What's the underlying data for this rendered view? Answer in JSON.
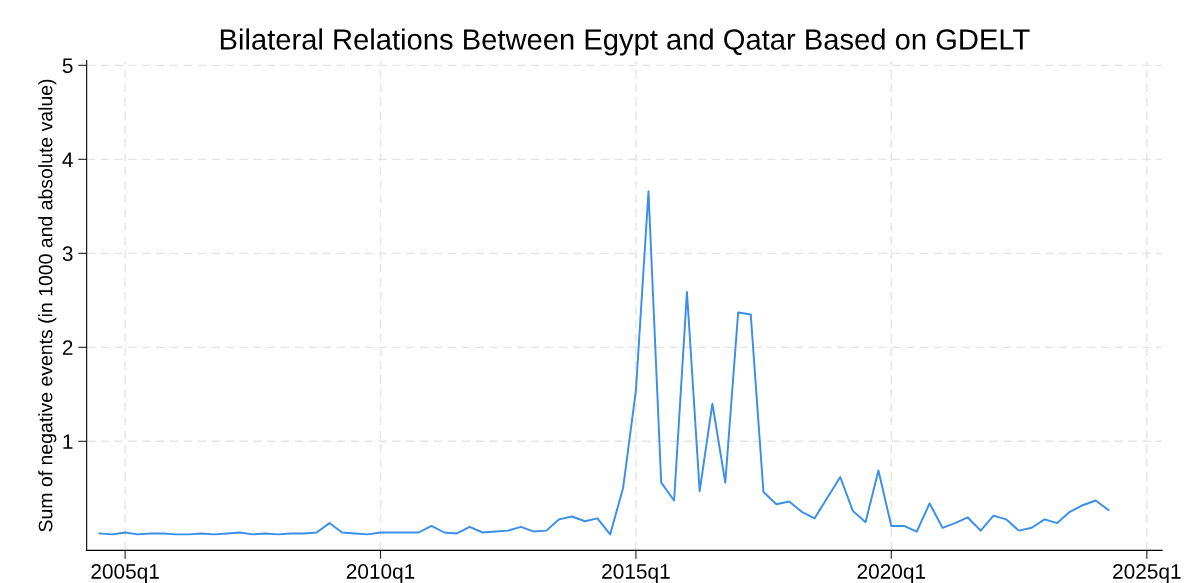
{
  "chart_data": {
    "type": "line",
    "title": "Bilateral Relations Between Egypt and Qatar Based on GDELT",
    "ylabel": "Sum of negative events (in 1000 and absolute value)",
    "x": [
      "2004-07",
      "2004-10",
      "2005-01",
      "2005-04",
      "2005-07",
      "2005-10",
      "2006-01",
      "2006-04",
      "2006-07",
      "2006-10",
      "2007-01",
      "2007-04",
      "2007-07",
      "2007-10",
      "2008-01",
      "2008-04",
      "2008-07",
      "2008-10",
      "2009-01",
      "2009-04",
      "2009-07",
      "2009-10",
      "2010-01",
      "2010-04",
      "2010-07",
      "2010-10",
      "2011-01",
      "2011-04",
      "2011-07",
      "2011-10",
      "2012-01",
      "2012-04",
      "2012-07",
      "2012-10",
      "2013-01",
      "2013-04",
      "2013-07",
      "2013-10",
      "2014-01",
      "2014-04",
      "2014-07",
      "2014-10",
      "2015-01",
      "2015-04",
      "2015-07",
      "2015-10",
      "2016-01",
      "2016-04",
      "2016-07",
      "2016-10",
      "2017-01",
      "2017-04",
      "2017-07",
      "2017-10",
      "2018-01",
      "2018-04",
      "2018-07",
      "2018-10",
      "2019-01",
      "2019-04",
      "2019-07",
      "2019-10",
      "2020-01",
      "2020-04",
      "2020-07",
      "2020-10",
      "2021-01",
      "2021-04",
      "2021-07",
      "2021-10",
      "2022-01",
      "2022-04",
      "2022-07",
      "2022-10",
      "2023-01",
      "2023-04",
      "2023-07",
      "2023-10",
      "2024-01",
      "2024-04"
    ],
    "series": [
      {
        "color": "#3a8fe8",
        "values": [
          0.02,
          0.01,
          0.03,
          0.01,
          0.02,
          0.02,
          0.01,
          0.01,
          0.02,
          0.01,
          0.02,
          0.03,
          0.01,
          0.02,
          0.01,
          0.02,
          0.02,
          0.03,
          0.13,
          0.03,
          0.02,
          0.01,
          0.03,
          0.03,
          0.03,
          0.03,
          0.1,
          0.03,
          0.02,
          0.09,
          0.03,
          0.04,
          0.05,
          0.09,
          0.04,
          0.05,
          0.17,
          0.2,
          0.15,
          0.18,
          0.01,
          0.5,
          1.54,
          3.66,
          0.56,
          0.37,
          2.59,
          0.47,
          1.4,
          0.56,
          2.37,
          2.35,
          0.46,
          0.33,
          0.36,
          0.25,
          0.18,
          0.4,
          0.62,
          0.26,
          0.14,
          0.69,
          0.1,
          0.1,
          0.04,
          0.34,
          0.08,
          0.13,
          0.19,
          0.05,
          0.21,
          0.17,
          0.05,
          0.08,
          0.17,
          0.13,
          0.25,
          0.32,
          0.37,
          0.27
        ]
      }
    ],
    "xlim": [
      "2004-04-01",
      "2025-04-20"
    ],
    "ylim": [
      -0.16,
      5.05
    ],
    "xticks": [
      {
        "value": "2005-01",
        "label": "2005q1"
      },
      {
        "value": "2010-01",
        "label": "2010q1"
      },
      {
        "value": "2015-01",
        "label": "2015q1"
      },
      {
        "value": "2020-01",
        "label": "2020q1"
      },
      {
        "value": "2025-01",
        "label": "2025q1"
      }
    ],
    "yticks": [
      1,
      2,
      3,
      4,
      5
    ],
    "grid": true,
    "line_style": "solid",
    "marker": "none"
  }
}
